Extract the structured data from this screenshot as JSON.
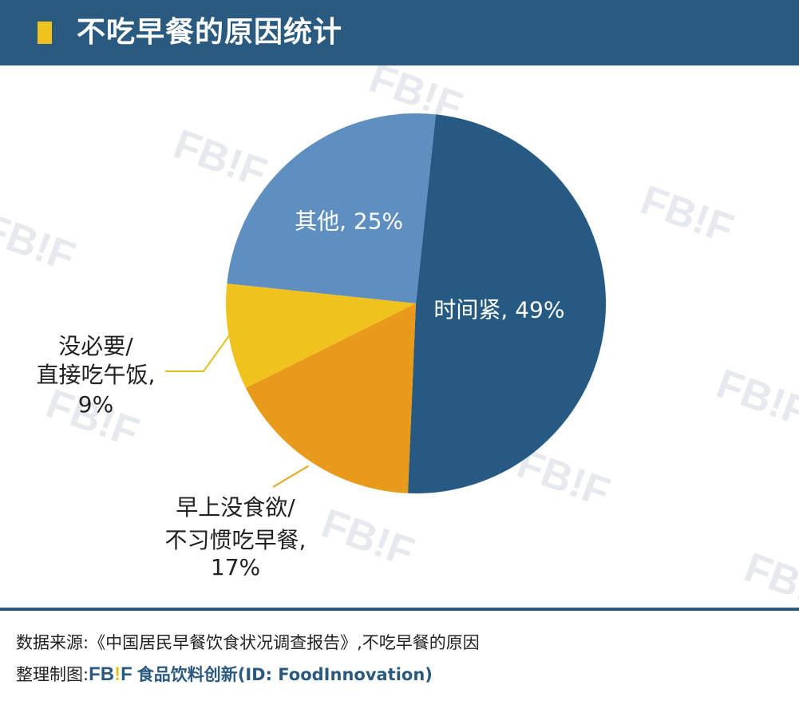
{
  "header": {
    "title": "不吃早餐的原因统计",
    "accent_color": "#f0c21e",
    "background_color": "#2a5a80"
  },
  "watermark": {
    "text": "FB!F",
    "color": "#e6e9ee"
  },
  "chart_data": {
    "type": "pie",
    "start_angle_deg": 6,
    "direction": "clockwise",
    "slices": [
      {
        "label": "时间紧",
        "value": 49,
        "color": "#275a82",
        "label_text": "时间紧, 49%",
        "label_position": "inside",
        "label_color": "#ffffff"
      },
      {
        "label": "早上没食欲/不习惯吃早餐",
        "value": 17,
        "color": "#e89a1a",
        "label_lines": [
          "早上没食欲/",
          "不习惯吃早餐,",
          "17%"
        ],
        "label_position": "outside-bottom-left",
        "label_color": "#222222",
        "leader_color": "#e3a51f"
      },
      {
        "label": "没必要/直接吃午饭",
        "value": 9,
        "color": "#f0c21e",
        "label_lines": [
          "没必要/",
          "直接吃午饭,",
          "9%"
        ],
        "label_position": "outside-left",
        "label_color": "#222222",
        "leader_color": "#e3c01f"
      },
      {
        "label": "其他",
        "value": 25,
        "color": "#5f8fc0",
        "label_text": "其他, 25%",
        "label_position": "inside",
        "label_color": "#ffffff"
      }
    ]
  },
  "footer": {
    "source_text": "数据来源:《中国居民早餐饮食状况调查报告》,不吃早餐的原因",
    "credit_prefix": "整理制图:",
    "brand_a": "FB",
    "brand_bang": "!",
    "brand_b": "F",
    "brand_cn": "食品饮料创新",
    "brand_id": "(ID: FoodInnovation)"
  }
}
